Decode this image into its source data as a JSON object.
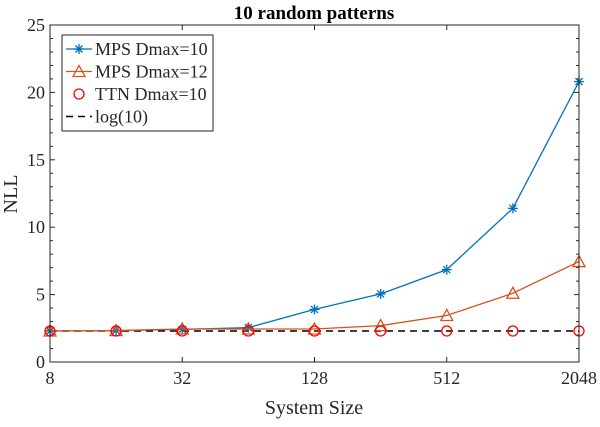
{
  "chart_data": {
    "type": "line",
    "title": "10 random patterns",
    "xlabel": "System Size",
    "ylabel": "NLL",
    "xscale": "log2",
    "xlim": [
      8,
      2048
    ],
    "ylim": [
      0,
      25
    ],
    "xticks": [
      8,
      32,
      128,
      512,
      2048
    ],
    "xtick_labels": [
      "8",
      "32",
      "128",
      "512",
      "2048"
    ],
    "yticks": [
      0,
      5,
      10,
      15,
      20,
      25
    ],
    "ytick_labels": [
      "0",
      "5",
      "10",
      "15",
      "20",
      "25"
    ],
    "grid": false,
    "legend_position": "top-left",
    "x": [
      8,
      16,
      32,
      64,
      128,
      256,
      512,
      1024,
      2048
    ],
    "series": [
      {
        "name": "MPS Dmax=10",
        "color": "#0072BD",
        "marker": "asterisk",
        "line": "solid",
        "values": [
          2.3,
          2.33,
          2.42,
          2.55,
          3.9,
          5.05,
          6.85,
          11.4,
          20.8
        ]
      },
      {
        "name": "MPS Dmax=12",
        "color": "#D95319",
        "marker": "triangle",
        "line": "solid",
        "values": [
          2.3,
          2.33,
          2.45,
          2.45,
          2.45,
          2.7,
          3.45,
          5.1,
          7.45
        ]
      },
      {
        "name": "TTN Dmax=10",
        "color": "#FF0000",
        "marker": "circle",
        "line": "none",
        "values": [
          2.3,
          2.3,
          2.3,
          2.3,
          2.3,
          2.3,
          2.3,
          2.3,
          2.3
        ]
      },
      {
        "name": "log(10)",
        "color": "#000000",
        "marker": "none",
        "line": "dashed",
        "values": [
          2.3026,
          2.3026,
          2.3026,
          2.3026,
          2.3026,
          2.3026,
          2.3026,
          2.3026,
          2.3026
        ]
      }
    ]
  }
}
